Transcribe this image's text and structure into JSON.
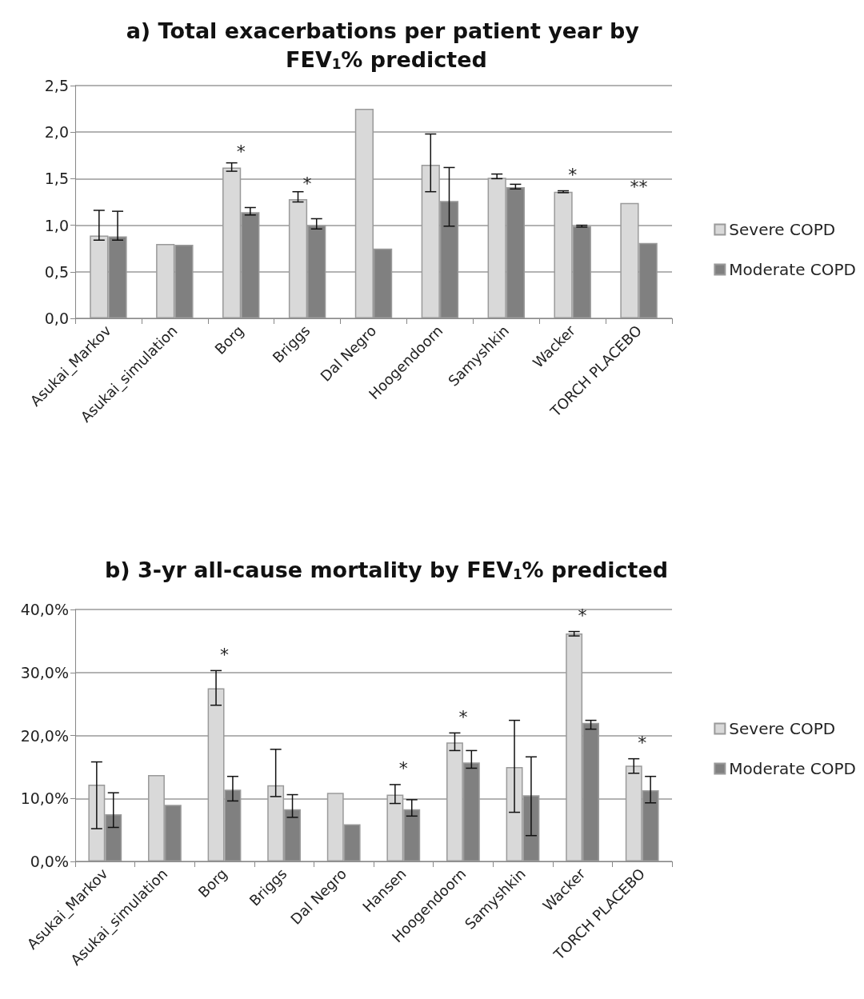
{
  "chart_data": [
    {
      "type": "bar",
      "title": "a) Total exacerbations per patient year by FEV$_{1}$% predicted",
      "categories": [
        "Asukai_Markov",
        "Asukai_simulation",
        "Borg",
        "Briggs",
        "Dal Negro",
        "Hoogendoorn",
        "Samyshkin",
        "Wacker",
        "TORCH PLACEBO"
      ],
      "series": [
        {
          "name": "Severe COPD",
          "color": "#d9d9d9",
          "values": [
            0.89,
            0.8,
            1.62,
            1.28,
            2.25,
            1.65,
            1.51,
            1.36,
            1.24
          ],
          "errors": [
            [
              0.84,
              1.16
            ],
            null,
            [
              1.58,
              1.67
            ],
            [
              1.25,
              1.36
            ],
            null,
            [
              1.36,
              1.98
            ],
            [
              1.5,
              1.55
            ],
            [
              1.35,
              1.37
            ],
            null
          ]
        },
        {
          "name": "Moderate COPD",
          "color": "#808080",
          "values": [
            0.88,
            0.79,
            1.14,
            1.0,
            0.75,
            1.26,
            1.41,
            0.99,
            0.81
          ],
          "errors": [
            [
              0.84,
              1.15
            ],
            null,
            [
              1.11,
              1.19
            ],
            [
              0.96,
              1.07
            ],
            null,
            [
              0.99,
              1.62
            ],
            [
              1.39,
              1.44
            ],
            [
              0.98,
              1.0
            ],
            null
          ]
        }
      ],
      "ylim": [
        0,
        2.5
      ],
      "yticks": [
        {
          "value": 0,
          "label": "0,0"
        },
        {
          "value": 0.5,
          "label": "0,5"
        },
        {
          "value": 1,
          "label": "1,0"
        },
        {
          "value": 1.5,
          "label": "1,5"
        },
        {
          "value": 2,
          "label": "2,0"
        },
        {
          "value": 2.5,
          "label": "2,5"
        }
      ],
      "annotations": [
        {
          "text": "*",
          "x": "Borg",
          "y": 1.62
        },
        {
          "text": "*",
          "x": "Briggs",
          "y": 1.28
        },
        {
          "text": "*",
          "x": "Wacker",
          "y": 1.37
        },
        {
          "text": "**",
          "x": "TORCH PLACEBO",
          "y": 1.24
        }
      ],
      "grid": "y",
      "legend": "right"
    },
    {
      "type": "bar",
      "title": "b) 3-yr all-cause mortality by FEV$_{1}$% predicted",
      "categories": [
        "Asukai_Markov",
        "Asukai_simulation",
        "Borg",
        "Briggs",
        "Dal Negro",
        "Hansen",
        "Hoogendoorn",
        "Samyshkin",
        "Wacker",
        "TORCH PLACEBO"
      ],
      "series": [
        {
          "name": "Severe COPD",
          "color": "#d9d9d9",
          "values": [
            12.2,
            13.7,
            27.5,
            12.1,
            10.9,
            10.6,
            18.9,
            15.0,
            36.2,
            15.2
          ],
          "errors": [
            [
              5.2,
              15.8
            ],
            null,
            [
              24.8,
              30.3
            ],
            [
              10.3,
              17.8
            ],
            null,
            [
              9.2,
              12.2
            ],
            [
              17.6,
              20.4
            ],
            [
              7.8,
              22.4
            ],
            [
              35.8,
              36.5
            ],
            [
              14.0,
              16.3
            ]
          ]
        },
        {
          "name": "Moderate COPD",
          "color": "#808080",
          "values": [
            7.5,
            9.0,
            11.4,
            8.3,
            5.9,
            8.3,
            15.7,
            10.5,
            22.0,
            11.3
          ],
          "errors": [
            [
              5.4,
              10.9
            ],
            null,
            [
              9.6,
              13.5
            ],
            [
              7.0,
              10.6
            ],
            null,
            [
              7.2,
              9.8
            ],
            [
              14.8,
              17.6
            ],
            [
              4.1,
              16.6
            ],
            [
              21.0,
              22.4
            ],
            [
              9.3,
              13.5
            ]
          ]
        }
      ],
      "ylim": [
        0,
        40
      ],
      "yticks": [
        {
          "value": 0,
          "label": "0,0%"
        },
        {
          "value": 10,
          "label": "10,0%"
        },
        {
          "value": 20,
          "label": "20,0%"
        },
        {
          "value": 30,
          "label": "30,0%"
        },
        {
          "value": 40,
          "label": "40,0%"
        }
      ],
      "annotations": [
        {
          "text": "*",
          "x": "Borg",
          "y": 30.3
        },
        {
          "text": "*",
          "x": "Hansen",
          "y": 12.2
        },
        {
          "text": "*",
          "x": "Hoogendoorn",
          "y": 20.4
        },
        {
          "text": "*",
          "x": "Wacker",
          "y": 36.5
        },
        {
          "text": "*",
          "x": "TORCH PLACEBO",
          "y": 16.3
        }
      ],
      "grid": "y",
      "legend": "right"
    }
  ]
}
